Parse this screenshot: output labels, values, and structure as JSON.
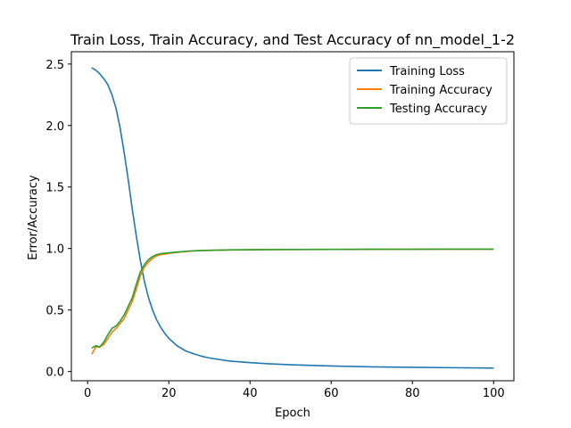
{
  "chart_data": {
    "type": "line",
    "title": "Train Loss, Train Accuracy, and Test Accuracy of nn_model_1-2",
    "xlabel": "Epoch",
    "ylabel": "Error/Accuracy",
    "xlim": [
      -4,
      105
    ],
    "ylim": [
      -0.075,
      2.6
    ],
    "x_ticks": [
      0,
      20,
      40,
      60,
      80,
      100
    ],
    "y_ticks": [
      0.0,
      0.5,
      1.0,
      1.5,
      2.0,
      2.5
    ],
    "x_tick_labels": [
      "0",
      "20",
      "40",
      "60",
      "80",
      "100"
    ],
    "y_tick_labels": [
      "0.0",
      "0.5",
      "1.0",
      "1.5",
      "2.0",
      "2.5"
    ],
    "grid": false,
    "legend_position": "upper right",
    "series": [
      {
        "name": "Training Loss",
        "color": "#1f77b4",
        "x": [
          1,
          2,
          3,
          4,
          5,
          6,
          7,
          8,
          9,
          10,
          11,
          12,
          13,
          14,
          15,
          16,
          17,
          18,
          19,
          20,
          22,
          24,
          26,
          28,
          30,
          35,
          40,
          45,
          50,
          60,
          70,
          80,
          90,
          100
        ],
        "y": [
          2.47,
          2.45,
          2.42,
          2.38,
          2.33,
          2.25,
          2.14,
          1.98,
          1.78,
          1.56,
          1.32,
          1.1,
          0.9,
          0.73,
          0.6,
          0.5,
          0.42,
          0.36,
          0.31,
          0.27,
          0.21,
          0.17,
          0.145,
          0.125,
          0.11,
          0.085,
          0.072,
          0.062,
          0.055,
          0.045,
          0.038,
          0.034,
          0.031,
          0.028
        ]
      },
      {
        "name": "Training Accuracy",
        "color": "#ff7f0e",
        "x": [
          1,
          2,
          3,
          4,
          5,
          6,
          7,
          8,
          9,
          10,
          11,
          12,
          13,
          14,
          15,
          16,
          17,
          18,
          19,
          20,
          22,
          24,
          26,
          28,
          30,
          35,
          40,
          45,
          50,
          60,
          70,
          80,
          90,
          100
        ],
        "y": [
          0.14,
          0.2,
          0.2,
          0.22,
          0.27,
          0.32,
          0.35,
          0.39,
          0.43,
          0.5,
          0.57,
          0.67,
          0.78,
          0.85,
          0.89,
          0.92,
          0.94,
          0.95,
          0.955,
          0.96,
          0.968,
          0.975,
          0.98,
          0.983,
          0.985,
          0.988,
          0.99,
          0.991,
          0.992,
          0.993,
          0.994,
          0.995,
          0.995,
          0.995
        ]
      },
      {
        "name": "Testing Accuracy",
        "color": "#2ca02c",
        "x": [
          1,
          2,
          3,
          4,
          5,
          6,
          7,
          8,
          9,
          10,
          11,
          12,
          13,
          14,
          15,
          16,
          17,
          18,
          19,
          20,
          22,
          24,
          26,
          28,
          30,
          35,
          40,
          45,
          50,
          60,
          70,
          80,
          90,
          100
        ],
        "y": [
          0.19,
          0.21,
          0.2,
          0.24,
          0.3,
          0.35,
          0.37,
          0.41,
          0.46,
          0.53,
          0.6,
          0.71,
          0.81,
          0.87,
          0.91,
          0.935,
          0.95,
          0.958,
          0.962,
          0.965,
          0.971,
          0.977,
          0.981,
          0.984,
          0.986,
          0.989,
          0.99,
          0.991,
          0.992,
          0.993,
          0.994,
          0.994,
          0.995,
          0.995
        ]
      }
    ]
  }
}
